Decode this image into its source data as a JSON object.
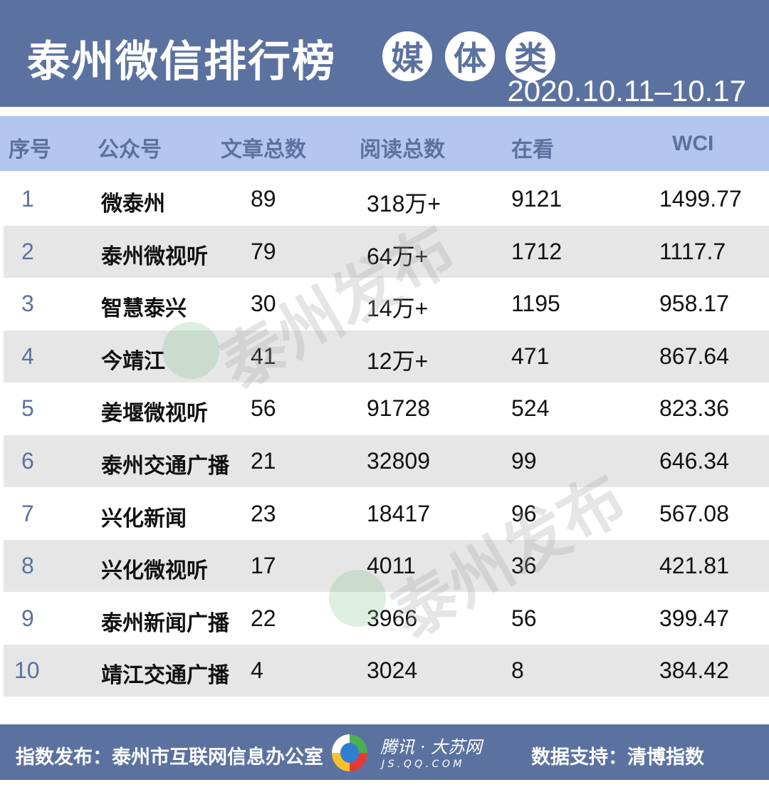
{
  "header": {
    "title": "泰州微信排行榜",
    "badges": [
      "媒",
      "体",
      "类"
    ],
    "date_range": "2020.10.11–10.17"
  },
  "table": {
    "columns": [
      "序号",
      "公众号",
      "文章总数",
      "阅读总数",
      "在看",
      "WCI"
    ],
    "rows": [
      [
        "1",
        "微泰州",
        "89",
        "318万+",
        "9121",
        "1499.77"
      ],
      [
        "2",
        "泰州微视听",
        "79",
        "64万+",
        "1712",
        "1117.7"
      ],
      [
        "3",
        "智慧泰兴",
        "30",
        "14万+",
        "1195",
        "958.17"
      ],
      [
        "4",
        "今靖江",
        "41",
        "12万+",
        "471",
        "867.64"
      ],
      [
        "5",
        "姜堰微视听",
        "56",
        "91728",
        "524",
        "823.36"
      ],
      [
        "6",
        "泰州交通广播",
        "21",
        "32809",
        "99",
        "646.34"
      ],
      [
        "7",
        "兴化新闻",
        "23",
        "18417",
        "96",
        "567.08"
      ],
      [
        "8",
        "兴化微视听",
        "17",
        "4011",
        "36",
        "421.81"
      ],
      [
        "9",
        "泰州新闻广播",
        "22",
        "3966",
        "56",
        "399.47"
      ],
      [
        "10",
        "靖江交通广播",
        "4",
        "3024",
        "8",
        "384.42"
      ]
    ]
  },
  "watermark": "泰州发布",
  "footer": {
    "publisher": "指数发布：泰州市互联网信息办公室",
    "partner_name": "腾讯 · 大苏网",
    "partner_url": "J S . Q Q . C O M",
    "support": "数据支持：清博指数"
  },
  "colors": {
    "brand": "#5b72a0",
    "header_row": "#b3c6ef",
    "stripe": "#e6e6e6"
  }
}
